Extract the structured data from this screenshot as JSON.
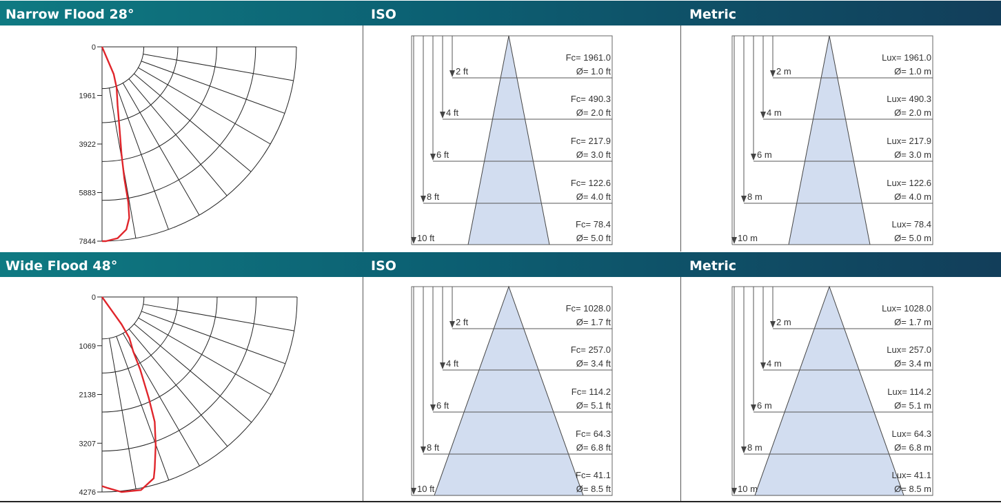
{
  "sections": [
    {
      "title": "Narrow Flood 28°",
      "iso_label": "ISO",
      "metric_label": "Metric",
      "polar": {
        "ticks": [
          "0",
          "1961",
          "3922",
          "5883",
          "7844"
        ]
      },
      "iso": {
        "unit": "ft",
        "rows": [
          {
            "dist": "2 ft",
            "value": "Fc= 1961.0",
            "diameter": "Ø= 1.0 ft"
          },
          {
            "dist": "4 ft",
            "value": "Fc= 490.3",
            "diameter": "Ø= 2.0 ft"
          },
          {
            "dist": "6 ft",
            "value": "Fc= 217.9",
            "diameter": "Ø= 3.0 ft"
          },
          {
            "dist": "8 ft",
            "value": "Fc= 122.6",
            "diameter": "Ø= 4.0 ft"
          },
          {
            "dist": "10 ft",
            "value": "Fc= 78.4",
            "diameter": "Ø= 5.0 ft"
          }
        ]
      },
      "metric": {
        "unit": "m",
        "rows": [
          {
            "dist": "2 m",
            "value": "Lux= 1961.0",
            "diameter": "Ø= 1.0 m"
          },
          {
            "dist": "4 m",
            "value": "Lux= 490.3",
            "diameter": "Ø= 2.0 m"
          },
          {
            "dist": "6 m",
            "value": "Lux= 217.9",
            "diameter": "Ø= 3.0 m"
          },
          {
            "dist": "8 m",
            "value": "Lux= 122.6",
            "diameter": "Ø= 4.0 m"
          },
          {
            "dist": "10 m",
            "value": "Lux= 78.4",
            "diameter": "Ø= 5.0 m"
          }
        ]
      }
    },
    {
      "title": "Wide Flood 48°",
      "iso_label": "ISO",
      "metric_label": "Metric",
      "polar": {
        "ticks": [
          "0",
          "1069",
          "2138",
          "3207",
          "4276"
        ]
      },
      "iso": {
        "unit": "ft",
        "rows": [
          {
            "dist": "2 ft",
            "value": "Fc= 1028.0",
            "diameter": "Ø= 1.7 ft"
          },
          {
            "dist": "4 ft",
            "value": "Fc= 257.0",
            "diameter": "Ø= 3.4 ft"
          },
          {
            "dist": "6 ft",
            "value": "Fc= 114.2",
            "diameter": "Ø= 5.1 ft"
          },
          {
            "dist": "8 ft",
            "value": "Fc= 64.3",
            "diameter": "Ø= 6.8 ft"
          },
          {
            "dist": "10 ft",
            "value": "Fc= 41.1",
            "diameter": "Ø= 8.5 ft"
          }
        ]
      },
      "metric": {
        "unit": "m",
        "rows": [
          {
            "dist": "2 m",
            "value": "Lux= 1028.0",
            "diameter": "Ø= 1.7 m"
          },
          {
            "dist": "4 m",
            "value": "Lux= 257.0",
            "diameter": "Ø= 3.4 m"
          },
          {
            "dist": "6 m",
            "value": "Lux= 114.2",
            "diameter": "Ø= 5.1 m"
          },
          {
            "dist": "8 m",
            "value": "Lux= 64.3",
            "diameter": "Ø= 6.8 m"
          },
          {
            "dist": "10 m",
            "value": "Lux= 41.1",
            "diameter": "Ø= 8.5 m"
          }
        ]
      }
    }
  ],
  "colors": {
    "header_start": "#0f7a82",
    "header_end": "#123e5a",
    "beam_fill": "#d2ddf0",
    "curve": "#e0252b",
    "grid": "#222222"
  }
}
